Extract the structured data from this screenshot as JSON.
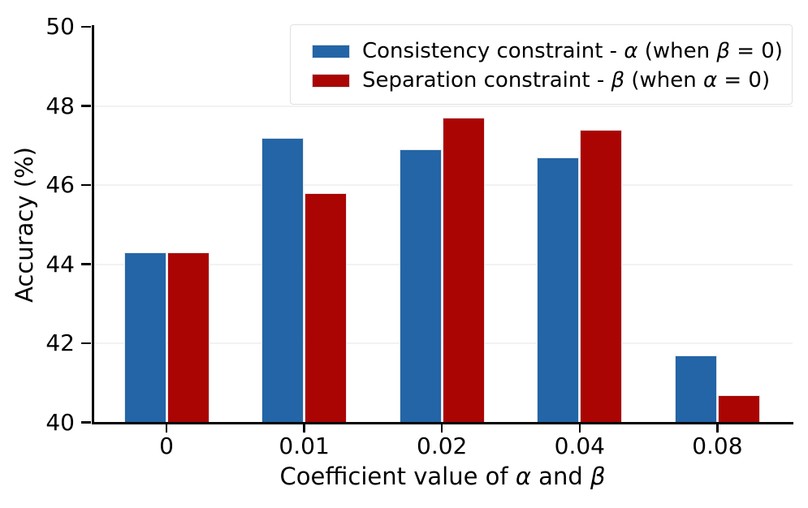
{
  "chart_data": {
    "type": "bar",
    "title": "",
    "xlabel": "Coefficient value of α and β",
    "xlabel_segments": [
      {
        "t": "Coefficient value of "
      },
      {
        "t": "α",
        "math": true
      },
      {
        "t": " and "
      },
      {
        "t": "β",
        "math": true
      }
    ],
    "ylabel": "Accuracy (%)",
    "categories": [
      "0",
      "0.01",
      "0.02",
      "0.04",
      "0.08"
    ],
    "series": [
      {
        "name": "Consistency constraint - α (when β = 0)",
        "color": "#2365a6",
        "values": [
          44.3,
          47.2,
          46.9,
          46.7,
          41.7
        ],
        "label_segments": [
          {
            "t": "Consistency constraint - "
          },
          {
            "t": "α",
            "math": true
          },
          {
            "t": " (when "
          },
          {
            "t": "β",
            "math": true
          },
          {
            "t": " = 0)"
          }
        ]
      },
      {
        "name": "Separation constraint - β (when α = 0)",
        "color": "#aa0403",
        "values": [
          44.3,
          45.8,
          47.7,
          47.4,
          40.7
        ],
        "label_segments": [
          {
            "t": "Separation constraint - "
          },
          {
            "t": "β",
            "math": true
          },
          {
            "t": " (when "
          },
          {
            "t": "α",
            "math": true
          },
          {
            "t": " = 0)"
          }
        ]
      }
    ],
    "ylim": [
      40,
      50
    ],
    "yticks": [
      40,
      42,
      44,
      46,
      48,
      50
    ],
    "grid": true,
    "legend_position": "upper-right",
    "colors": {
      "background": "#ffffff",
      "axis": "#000000",
      "grid": "#f2f2f2",
      "bar_edge": "#e3e8ee",
      "legend_border": "#e0e0e0"
    }
  }
}
